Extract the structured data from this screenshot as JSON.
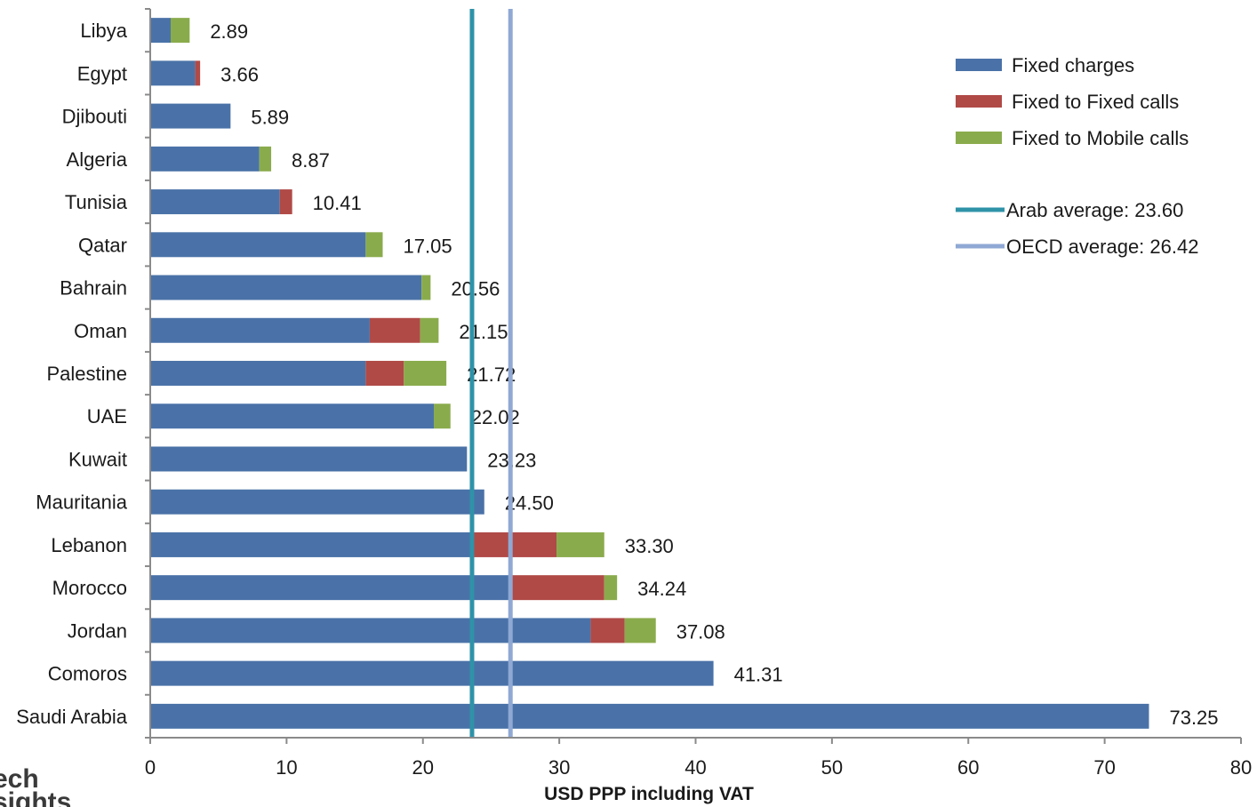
{
  "chart_data": {
    "type": "bar",
    "orientation": "horizontal",
    "stacked": true,
    "categories": [
      "Libya",
      "Egypt",
      "Djibouti",
      "Algeria",
      "Tunisia",
      "Qatar",
      "Bahrain",
      "Oman",
      "Palestine",
      "UAE",
      "Kuwait",
      "Mauritania",
      "Lebanon",
      "Morocco",
      "Jordan",
      "Comoros",
      "Saudi Arabia"
    ],
    "series": [
      {
        "name": "Fixed charges",
        "color": "#4a72a8",
        "values": [
          1.5,
          3.3,
          5.89,
          8.0,
          9.5,
          15.8,
          19.9,
          16.1,
          15.8,
          20.8,
          23.23,
          24.5,
          23.5,
          26.4,
          32.3,
          41.31,
          73.25
        ]
      },
      {
        "name": "Fixed to Fixed calls",
        "color": "#b04a47",
        "values": [
          0,
          0.36,
          0,
          0,
          0.91,
          0,
          0,
          3.7,
          2.8,
          0,
          0,
          0,
          6.3,
          6.9,
          2.5,
          0,
          0
        ]
      },
      {
        "name": "Fixed to Mobile calls",
        "color": "#8aab4c",
        "values": [
          1.39,
          0,
          0,
          0.87,
          0,
          1.25,
          0.66,
          1.35,
          3.12,
          1.22,
          0,
          0,
          3.5,
          0.94,
          2.28,
          0,
          0
        ]
      }
    ],
    "totals": [
      "2.89",
      "3.66",
      "5.89",
      "8.87",
      "10.41",
      "17.05",
      "20.56",
      "21.15",
      "21.72",
      "22.02",
      "23.23",
      "24.50",
      "33.30",
      "34.24",
      "37.08",
      "41.31",
      "73.25"
    ],
    "reference_lines": [
      {
        "name": "Arab average: 23.60",
        "value": 23.6,
        "color": "#2f93a8"
      },
      {
        "name": "OECD average: 26.42",
        "value": 26.42,
        "color": "#8fa9d4"
      }
    ],
    "xlabel": "USD PPP including VAT",
    "xlim": [
      0,
      80
    ],
    "xticks": [
      0,
      10,
      20,
      30,
      40,
      50,
      60,
      70,
      80
    ],
    "legend_position": "top-right",
    "grid": false
  },
  "logo": {
    "line1": "ech",
    "line2": "sights"
  }
}
